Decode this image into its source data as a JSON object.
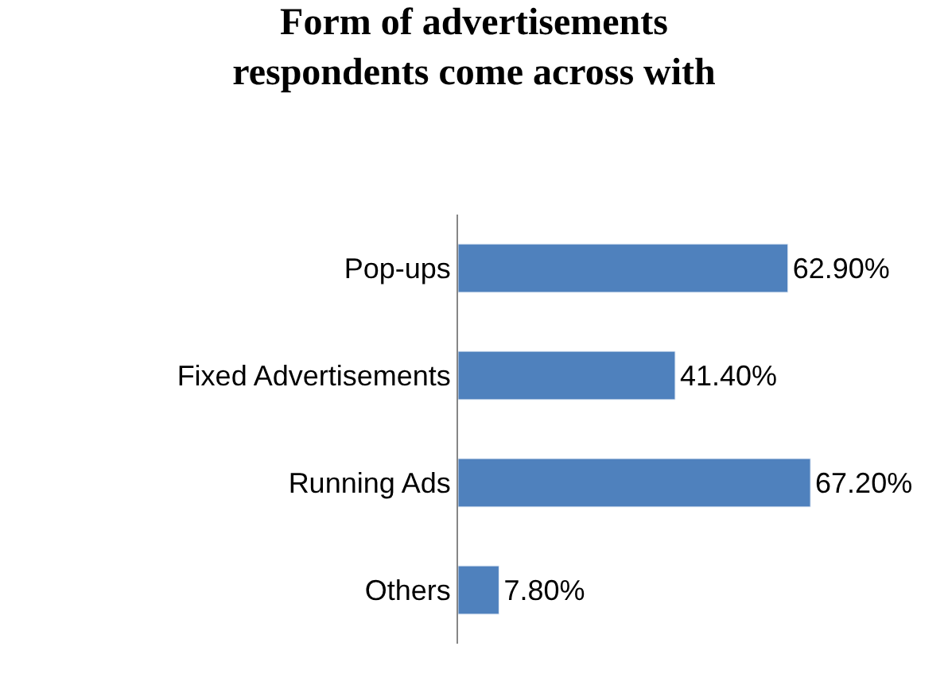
{
  "chart_data": {
    "type": "bar",
    "orientation": "horizontal",
    "title": "Form of advertisements respondents come across with",
    "categories": [
      "Pop-ups",
      "Fixed Advertisements",
      "Running Ads",
      "Others"
    ],
    "values": [
      62.9,
      41.4,
      67.2,
      7.8
    ],
    "color": "#4f81bd",
    "value_labels": [
      "62.90%",
      "41.40%",
      "67.20%",
      "7.80%"
    ]
  }
}
